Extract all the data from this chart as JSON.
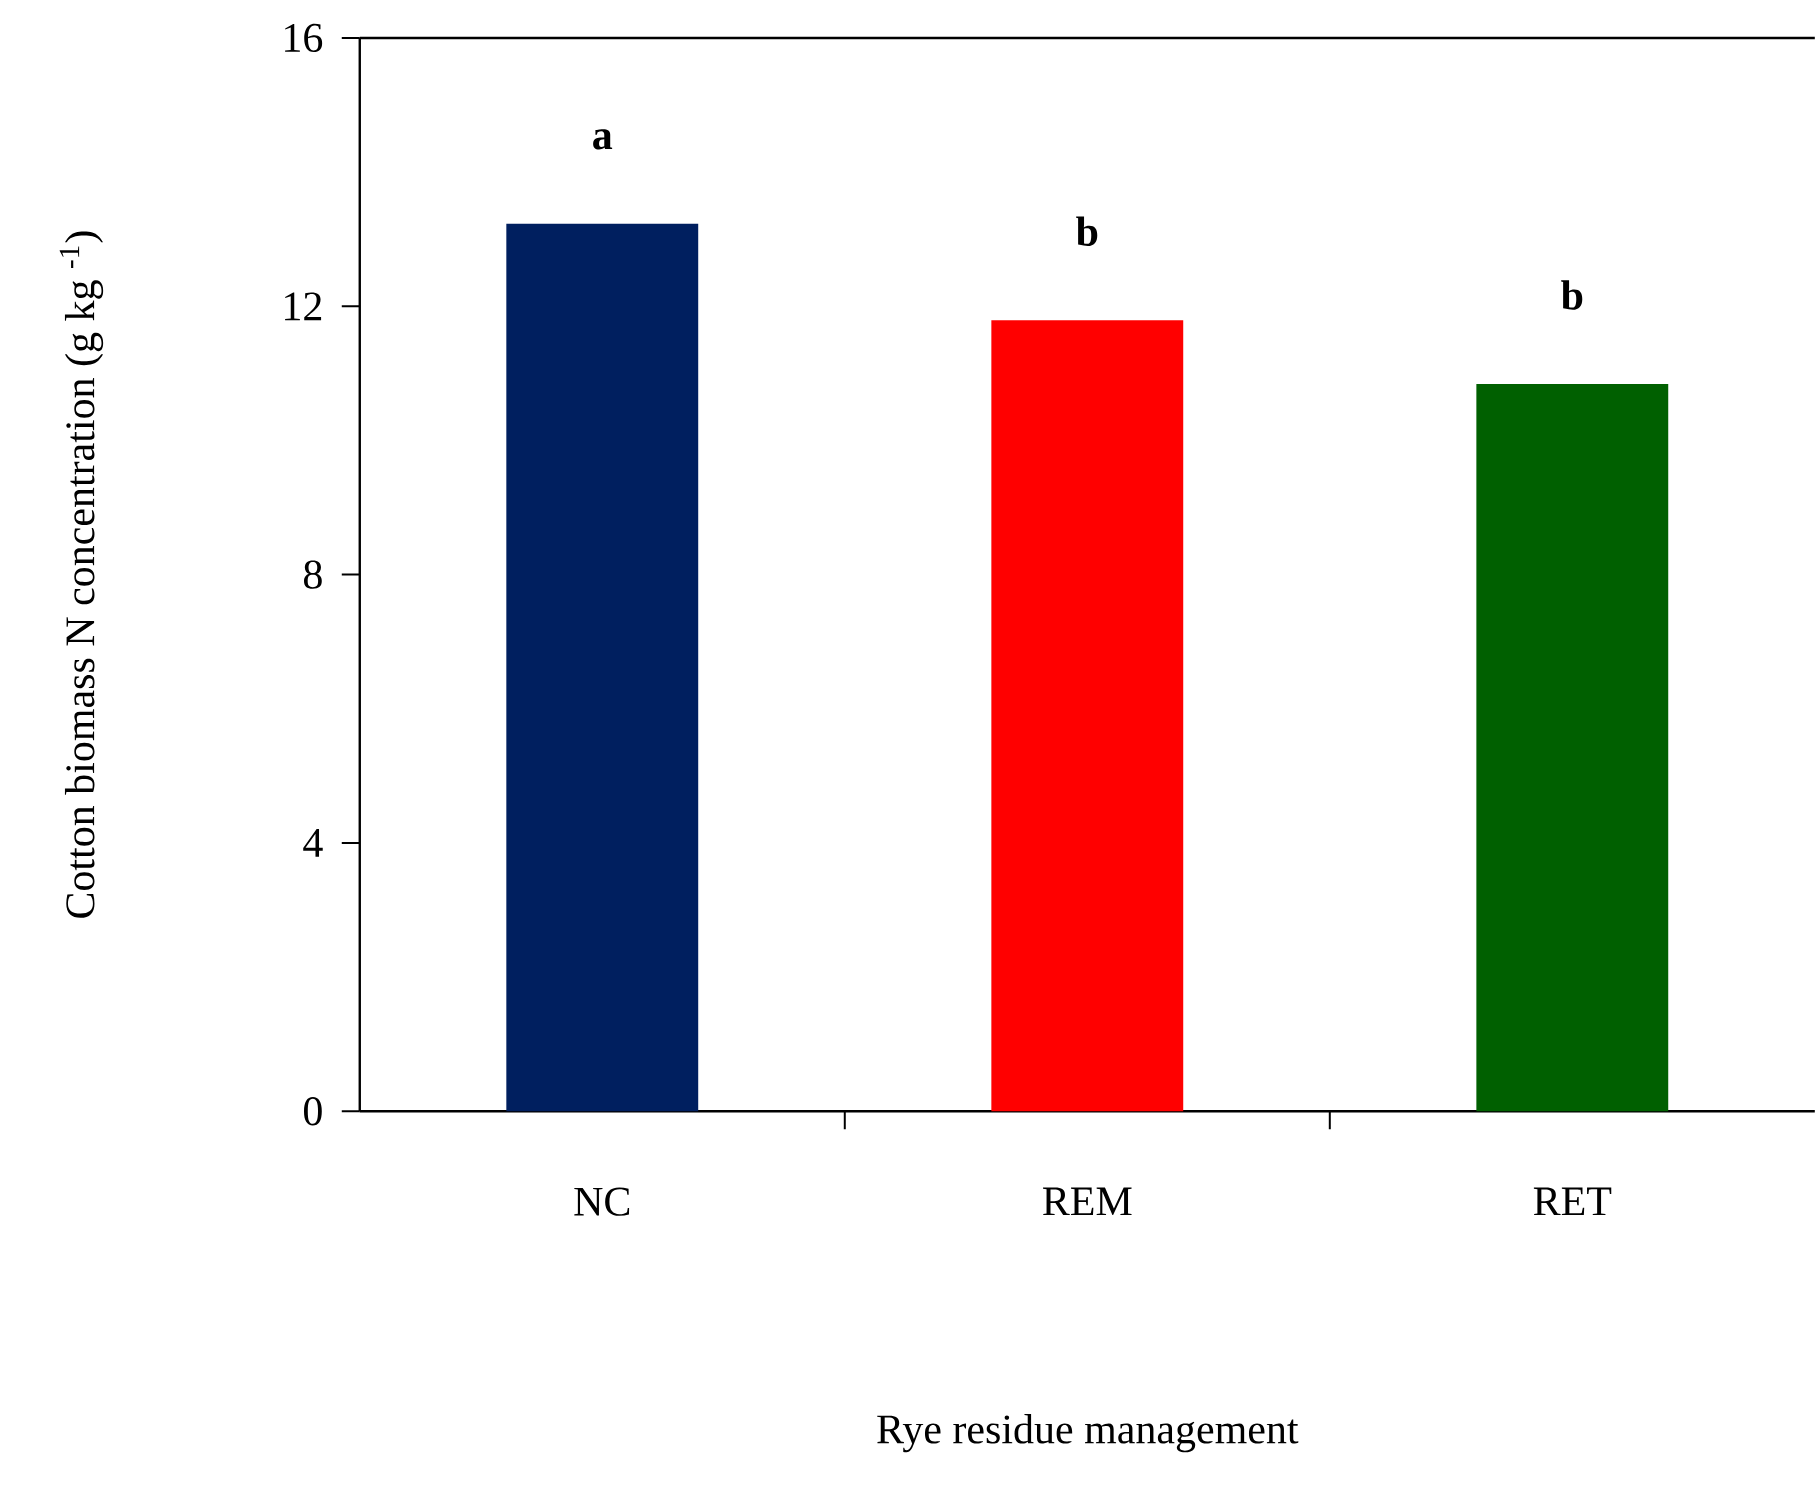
{
  "chart_data": {
    "type": "bar",
    "xlabel": "Rye residue management",
    "ylabel": "Cotton biomass N concentration (g kg $^{-1}$)",
    "categories": [
      "NC",
      "REM",
      "RET"
    ],
    "values": [
      13.23,
      11.79,
      10.84
    ],
    "colors": [
      "#001f5f",
      "#ff0000",
      "#006000"
    ],
    "ylim": [
      0,
      16
    ],
    "yticks": [
      0,
      4,
      8,
      12,
      16
    ],
    "annotations": [
      "a",
      "b",
      "b"
    ]
  }
}
